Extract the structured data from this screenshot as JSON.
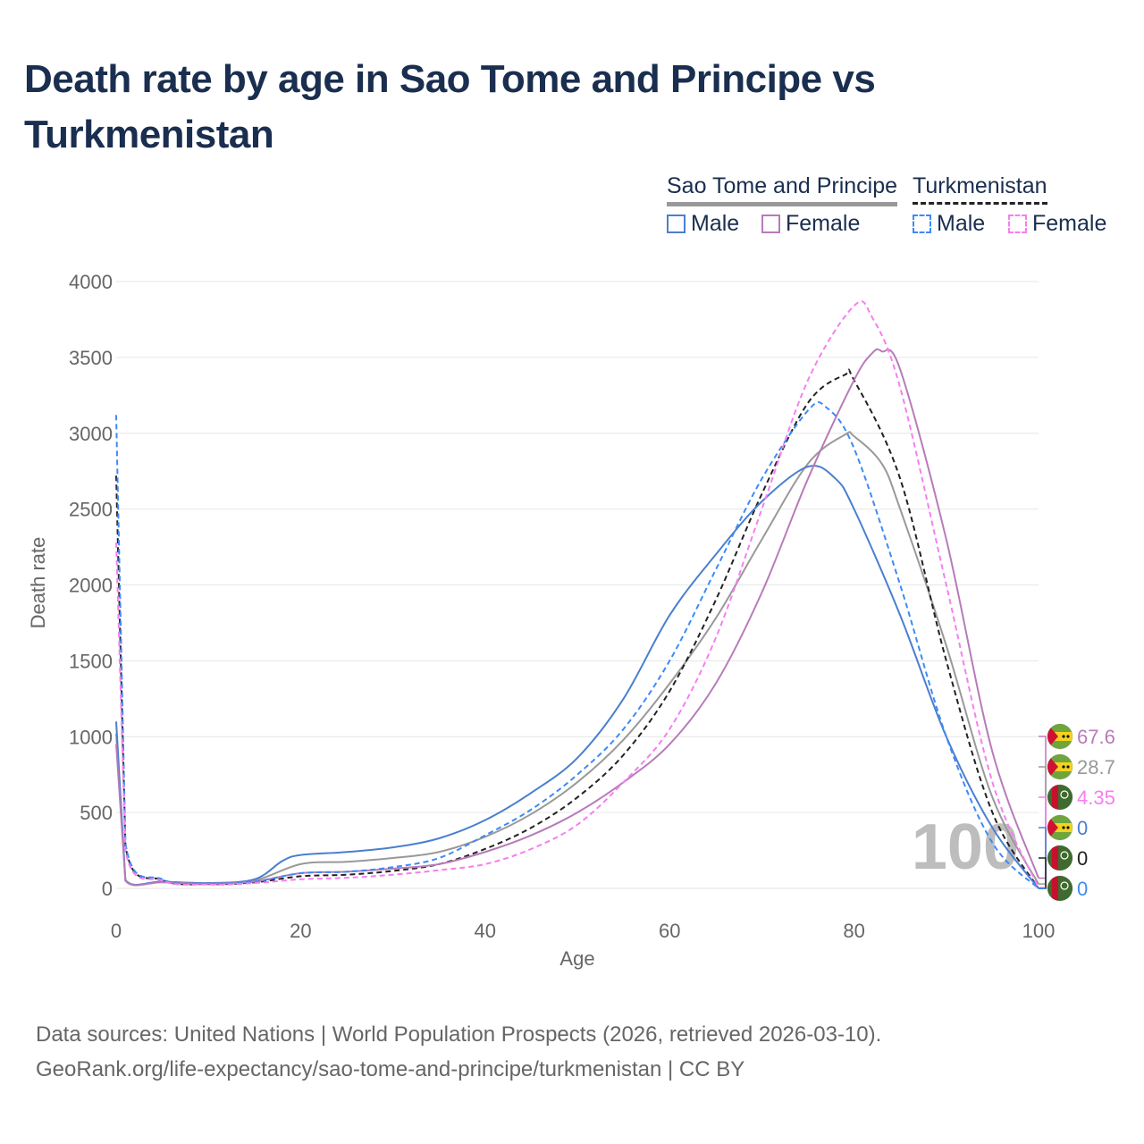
{
  "title": "Death rate by age in Sao Tome and Principe vs Turkmenistan",
  "legend": {
    "groups": [
      {
        "name": "Sao Tome and Principe",
        "items": [
          "Male",
          "Female"
        ]
      },
      {
        "name": "Turkmenistan",
        "items": [
          "Male",
          "Female"
        ]
      }
    ]
  },
  "watermark": "100",
  "footer": {
    "line1": "Data sources: United Nations | World Population Prospects (2026, retrieved 2026-03-10).",
    "line2": "GeoRank.org/life-expectancy/sao-tome-and-principe/turkmenistan | CC BY"
  },
  "colors": {
    "stp_male": "#4a7fcf",
    "stp_female": "#b87bb8",
    "stp_total": "#999999",
    "tkm_male": "#3d8af7",
    "tkm_female": "#f77ef0",
    "tkm_total": "#222222"
  },
  "chart_data": {
    "type": "line",
    "title": "Death rate by age in Sao Tome and Principe vs Turkmenistan",
    "xlabel": "Age",
    "ylabel": "Death rate",
    "xlim": [
      0,
      100
    ],
    "ylim": [
      0,
      4000
    ],
    "xticks": [
      "0",
      "20",
      "40",
      "60",
      "80",
      "100"
    ],
    "yticks": [
      "0",
      "500",
      "1000",
      "1500",
      "2000",
      "2500",
      "3000",
      "3500",
      "4000"
    ],
    "grid": true,
    "legend_position": "top-right",
    "series": [
      {
        "name": "Sao Tome and Principe Male",
        "key": "stp_male",
        "dash": false,
        "end_label": "0",
        "flag": "stp",
        "x": [
          0,
          1,
          5,
          10,
          15,
          18,
          20,
          25,
          30,
          35,
          40,
          45,
          50,
          55,
          60,
          65,
          70,
          75,
          78,
          80,
          85,
          90,
          95,
          100
        ],
        "y": [
          1100,
          55,
          45,
          35,
          60,
          180,
          220,
          240,
          270,
          330,
          450,
          630,
          860,
          1250,
          1800,
          2200,
          2550,
          2780,
          2700,
          2500,
          1800,
          1000,
          400,
          0
        ]
      },
      {
        "name": "Sao Tome and Principe Female",
        "key": "stp_female",
        "dash": false,
        "end_label": "67.6",
        "flag": "stp",
        "x": [
          0,
          1,
          5,
          10,
          15,
          20,
          25,
          30,
          35,
          40,
          45,
          50,
          55,
          60,
          65,
          70,
          75,
          80,
          82,
          83,
          85,
          90,
          95,
          100
        ],
        "y": [
          950,
          50,
          40,
          30,
          45,
          100,
          110,
          130,
          160,
          240,
          350,
          500,
          700,
          950,
          1350,
          1950,
          2700,
          3350,
          3530,
          3540,
          3420,
          2300,
          900,
          67.6
        ]
      },
      {
        "name": "Sao Tome and Principe Total",
        "key": "stp_total",
        "dash": false,
        "end_label": "28.7",
        "flag": "stp",
        "x": [
          0,
          1,
          5,
          10,
          15,
          20,
          25,
          30,
          35,
          40,
          45,
          50,
          55,
          60,
          65,
          70,
          75,
          79,
          80,
          83,
          85,
          90,
          95,
          100
        ],
        "y": [
          1020,
          52,
          42,
          32,
          52,
          160,
          175,
          200,
          240,
          340,
          490,
          700,
          980,
          1350,
          1780,
          2300,
          2800,
          2990,
          2980,
          2800,
          2500,
          1600,
          600,
          28.7
        ]
      },
      {
        "name": "Turkmenistan Male",
        "key": "tkm_male",
        "dash": true,
        "end_label": "0",
        "flag": "tkm",
        "x": [
          0,
          1,
          5,
          10,
          15,
          20,
          25,
          30,
          35,
          40,
          45,
          50,
          55,
          60,
          65,
          70,
          75,
          77,
          80,
          85,
          90,
          95,
          100
        ],
        "y": [
          3120,
          300,
          60,
          30,
          45,
          100,
          110,
          140,
          200,
          350,
          520,
          750,
          1050,
          1500,
          2100,
          2700,
          3150,
          3170,
          2900,
          2000,
          1000,
          300,
          0
        ]
      },
      {
        "name": "Turkmenistan Female",
        "key": "tkm_female",
        "dash": true,
        "end_label": "4.35",
        "flag": "tkm",
        "x": [
          0,
          1,
          5,
          10,
          15,
          20,
          25,
          30,
          35,
          40,
          45,
          50,
          55,
          60,
          65,
          70,
          75,
          80,
          82,
          85,
          90,
          95,
          100
        ],
        "y": [
          2280,
          250,
          50,
          25,
          35,
          60,
          70,
          90,
          120,
          160,
          260,
          420,
          700,
          1050,
          1650,
          2500,
          3350,
          3840,
          3760,
          3300,
          2000,
          700,
          4.35
        ]
      },
      {
        "name": "Turkmenistan Total",
        "key": "tkm_total",
        "dash": true,
        "end_label": "0",
        "flag": "tkm",
        "x": [
          0,
          1,
          5,
          10,
          15,
          20,
          25,
          30,
          35,
          40,
          45,
          50,
          55,
          60,
          65,
          70,
          75,
          79,
          80,
          85,
          90,
          95,
          100
        ],
        "y": [
          2720,
          280,
          55,
          28,
          40,
          80,
          90,
          115,
          160,
          260,
          400,
          600,
          880,
          1300,
          1900,
          2600,
          3200,
          3385,
          3350,
          2700,
          1500,
          500,
          0
        ]
      }
    ]
  }
}
